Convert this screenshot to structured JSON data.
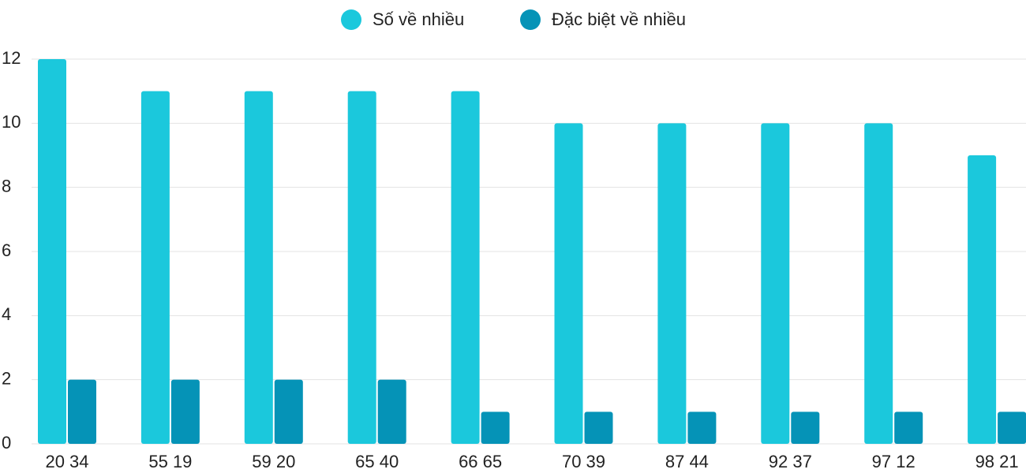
{
  "chart_data": {
    "type": "bar",
    "categories": [
      "20 34",
      "55 19",
      "59 20",
      "65 40",
      "66 65",
      "70 39",
      "87 44",
      "92 37",
      "97 12",
      "98 21"
    ],
    "series": [
      {
        "name": "Số về nhiều",
        "color": "#1bc8dc",
        "values": [
          12,
          11,
          11,
          11,
          11,
          10,
          10,
          10,
          10,
          9
        ]
      },
      {
        "name": "Đặc biệt về nhiều",
        "color": "#0593b7",
        "values": [
          2,
          2,
          2,
          2,
          1,
          1,
          1,
          1,
          1,
          1
        ]
      }
    ],
    "ylim": [
      0,
      12
    ],
    "yticks": [
      0,
      2,
      4,
      6,
      8,
      10,
      12
    ],
    "grid": true,
    "legend": "top"
  }
}
